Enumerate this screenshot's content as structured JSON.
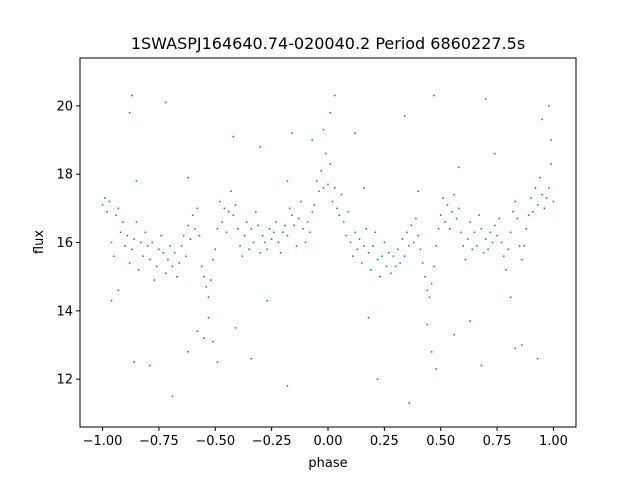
{
  "chart_data": {
    "type": "scatter",
    "title": "1SWASPJ164640.74-020040.2 Period 6860227.5s",
    "xlabel": "phase",
    "ylabel": "flux",
    "xlim": [
      -1.1,
      1.1
    ],
    "ylim": [
      10.6,
      21.4
    ],
    "xticks": [
      -1.0,
      -0.75,
      -0.5,
      -0.25,
      0.0,
      0.25,
      0.5,
      0.75,
      1.0
    ],
    "xtick_labels": [
      "−1.00",
      "−0.75",
      "−0.50",
      "−0.25",
      "0.00",
      "0.25",
      "0.50",
      "0.75",
      "1.00"
    ],
    "yticks": [
      12,
      14,
      16,
      18,
      20
    ],
    "ytick_labels": [
      "12",
      "14",
      "16",
      "18",
      "20"
    ],
    "grid": false,
    "point_color": "#1f77b4",
    "series": [
      {
        "points": [
          [
            -1.0,
            17.1
          ],
          [
            -0.99,
            17.3
          ],
          [
            -0.98,
            16.9
          ],
          [
            -0.97,
            17.2
          ],
          [
            -0.96,
            16.0
          ],
          [
            -0.95,
            15.6
          ],
          [
            -0.94,
            16.8
          ],
          [
            -0.93,
            17.0
          ],
          [
            -0.92,
            16.3
          ],
          [
            -0.91,
            16.6
          ],
          [
            -0.9,
            15.9
          ],
          [
            -0.89,
            16.2
          ],
          [
            -0.88,
            15.4
          ],
          [
            -0.87,
            15.8
          ],
          [
            -0.86,
            16.1
          ],
          [
            -0.85,
            16.6
          ],
          [
            -0.84,
            15.2
          ],
          [
            -0.83,
            16.0
          ],
          [
            -0.82,
            15.6
          ],
          [
            -0.81,
            16.3
          ],
          [
            -0.8,
            15.9
          ],
          [
            -0.79,
            15.5
          ],
          [
            -0.78,
            16.0
          ],
          [
            -0.77,
            14.9
          ],
          [
            -0.76,
            15.3
          ],
          [
            -0.75,
            15.8
          ],
          [
            -0.74,
            16.2
          ],
          [
            -0.73,
            15.7
          ],
          [
            -0.72,
            15.1
          ],
          [
            -0.71,
            15.5
          ],
          [
            -0.7,
            15.9
          ],
          [
            -0.69,
            15.3
          ],
          [
            -0.68,
            15.7
          ],
          [
            -0.67,
            15.0
          ],
          [
            -0.66,
            15.4
          ],
          [
            -0.65,
            15.9
          ],
          [
            -0.64,
            16.2
          ],
          [
            -0.63,
            15.6
          ],
          [
            -0.62,
            16.5
          ],
          [
            -0.61,
            16.1
          ],
          [
            -0.6,
            16.8
          ],
          [
            -0.59,
            16.4
          ],
          [
            -0.58,
            17.0
          ],
          [
            -0.57,
            16.2
          ],
          [
            -0.56,
            15.3
          ],
          [
            -0.55,
            15.0
          ],
          [
            -0.54,
            14.7
          ],
          [
            -0.53,
            14.4
          ],
          [
            -0.52,
            14.9
          ],
          [
            -0.51,
            15.5
          ],
          [
            -0.5,
            15.8
          ],
          [
            -0.49,
            16.4
          ],
          [
            -0.48,
            17.2
          ],
          [
            -0.47,
            16.6
          ],
          [
            -0.46,
            17.0
          ],
          [
            -0.45,
            16.3
          ],
          [
            -0.44,
            16.9
          ],
          [
            -0.43,
            17.5
          ],
          [
            -0.42,
            16.8
          ],
          [
            -0.41,
            17.1
          ],
          [
            -0.4,
            16.4
          ],
          [
            -0.39,
            15.9
          ],
          [
            -0.38,
            15.6
          ],
          [
            -0.37,
            16.2
          ],
          [
            -0.36,
            16.6
          ],
          [
            -0.35,
            15.8
          ],
          [
            -0.34,
            16.4
          ],
          [
            -0.33,
            16.0
          ],
          [
            -0.32,
            16.9
          ],
          [
            -0.31,
            16.5
          ],
          [
            -0.3,
            15.7
          ],
          [
            -0.29,
            16.2
          ],
          [
            -0.28,
            16.0
          ],
          [
            -0.27,
            15.8
          ],
          [
            -0.26,
            16.4
          ],
          [
            -0.25,
            16.1
          ],
          [
            -0.24,
            16.3
          ],
          [
            -0.23,
            16.6
          ],
          [
            -0.22,
            16.0
          ],
          [
            -0.21,
            15.7
          ],
          [
            -0.2,
            16.3
          ],
          [
            -0.19,
            16.5
          ],
          [
            -0.18,
            16.2
          ],
          [
            -0.17,
            17.0
          ],
          [
            -0.16,
            16.8
          ],
          [
            -0.15,
            16.5
          ],
          [
            -0.14,
            15.9
          ],
          [
            -0.13,
            16.7
          ],
          [
            -0.12,
            17.2
          ],
          [
            -0.11,
            16.4
          ],
          [
            -0.1,
            16.0
          ],
          [
            -0.09,
            16.6
          ],
          [
            -0.08,
            16.3
          ],
          [
            -0.07,
            16.9
          ],
          [
            -0.06,
            17.1
          ],
          [
            -0.05,
            17.8
          ],
          [
            -0.04,
            17.5
          ],
          [
            -0.03,
            18.1
          ],
          [
            -0.02,
            17.6
          ],
          [
            -0.01,
            18.6
          ],
          [
            0.0,
            17.7
          ],
          [
            0.01,
            18.3
          ],
          [
            0.02,
            17.2
          ],
          [
            0.03,
            17.6
          ],
          [
            0.04,
            17.0
          ],
          [
            0.05,
            16.8
          ],
          [
            0.06,
            17.4
          ],
          [
            0.07,
            16.6
          ],
          [
            0.08,
            16.2
          ],
          [
            0.09,
            16.9
          ],
          [
            0.1,
            16.0
          ],
          [
            0.11,
            15.6
          ],
          [
            0.12,
            16.3
          ],
          [
            0.13,
            15.8
          ],
          [
            0.14,
            16.1
          ],
          [
            0.15,
            15.4
          ],
          [
            0.16,
            15.9
          ],
          [
            0.17,
            16.4
          ],
          [
            0.18,
            15.7
          ],
          [
            0.19,
            15.2
          ],
          [
            0.2,
            15.9
          ],
          [
            0.21,
            16.3
          ],
          [
            0.22,
            15.5
          ],
          [
            0.23,
            15.0
          ],
          [
            0.24,
            15.6
          ],
          [
            0.25,
            16.0
          ],
          [
            0.26,
            15.3
          ],
          [
            0.27,
            15.7
          ],
          [
            0.28,
            15.1
          ],
          [
            0.29,
            15.6
          ],
          [
            0.3,
            15.3
          ],
          [
            0.31,
            15.8
          ],
          [
            0.32,
            15.4
          ],
          [
            0.33,
            16.1
          ],
          [
            0.34,
            15.6
          ],
          [
            0.35,
            16.3
          ],
          [
            0.36,
            15.9
          ],
          [
            0.37,
            16.5
          ],
          [
            0.38,
            16.0
          ],
          [
            0.39,
            16.7
          ],
          [
            0.4,
            16.2
          ],
          [
            0.41,
            15.8
          ],
          [
            0.42,
            15.4
          ],
          [
            0.43,
            15.0
          ],
          [
            0.44,
            14.6
          ],
          [
            0.45,
            14.4
          ],
          [
            0.46,
            14.8
          ],
          [
            0.47,
            15.3
          ],
          [
            0.48,
            15.9
          ],
          [
            0.49,
            16.4
          ],
          [
            0.5,
            16.8
          ],
          [
            0.51,
            17.3
          ],
          [
            0.52,
            16.6
          ],
          [
            0.53,
            17.1
          ],
          [
            0.54,
            16.4
          ],
          [
            0.55,
            16.9
          ],
          [
            0.56,
            17.4
          ],
          [
            0.57,
            16.7
          ],
          [
            0.58,
            17.0
          ],
          [
            0.59,
            16.3
          ],
          [
            0.6,
            15.9
          ],
          [
            0.61,
            15.5
          ],
          [
            0.62,
            16.1
          ],
          [
            0.63,
            16.6
          ],
          [
            0.64,
            15.8
          ],
          [
            0.65,
            16.3
          ],
          [
            0.66,
            15.9
          ],
          [
            0.67,
            16.8
          ],
          [
            0.68,
            16.4
          ],
          [
            0.69,
            15.7
          ],
          [
            0.7,
            16.1
          ],
          [
            0.71,
            15.8
          ],
          [
            0.72,
            16.3
          ],
          [
            0.73,
            16.0
          ],
          [
            0.74,
            16.5
          ],
          [
            0.75,
            16.2
          ],
          [
            0.76,
            16.7
          ],
          [
            0.77,
            16.0
          ],
          [
            0.78,
            15.6
          ],
          [
            0.79,
            15.2
          ],
          [
            0.8,
            15.8
          ],
          [
            0.81,
            16.3
          ],
          [
            0.82,
            16.9
          ],
          [
            0.83,
            17.2
          ],
          [
            0.84,
            16.7
          ],
          [
            0.85,
            15.9
          ],
          [
            0.86,
            15.5
          ],
          [
            0.87,
            15.9
          ],
          [
            0.88,
            16.4
          ],
          [
            0.89,
            16.8
          ],
          [
            0.9,
            17.3
          ],
          [
            0.91,
            16.9
          ],
          [
            0.92,
            17.6
          ],
          [
            0.93,
            17.1
          ],
          [
            0.94,
            17.9
          ],
          [
            0.95,
            17.4
          ],
          [
            0.96,
            17.0
          ],
          [
            0.97,
            17.3
          ],
          [
            0.98,
            17.6
          ],
          [
            0.99,
            18.3
          ],
          [
            1.0,
            17.2
          ],
          [
            -0.88,
            19.8
          ],
          [
            -0.87,
            20.3
          ],
          [
            -0.96,
            14.3
          ],
          [
            -0.93,
            14.6
          ],
          [
            -0.86,
            12.5
          ],
          [
            -0.79,
            12.4
          ],
          [
            -0.69,
            11.5
          ],
          [
            -0.62,
            12.8
          ],
          [
            -0.58,
            13.4
          ],
          [
            -0.55,
            13.2
          ],
          [
            -0.53,
            13.8
          ],
          [
            -0.51,
            13.1
          ],
          [
            -0.49,
            12.5
          ],
          [
            -0.41,
            13.5
          ],
          [
            -0.34,
            12.6
          ],
          [
            -0.27,
            14.3
          ],
          [
            -0.18,
            17.8
          ],
          [
            -0.16,
            19.2
          ],
          [
            -0.07,
            19.0
          ],
          [
            -0.02,
            19.3
          ],
          [
            0.01,
            19.8
          ],
          [
            0.03,
            20.3
          ],
          [
            0.12,
            19.2
          ],
          [
            0.18,
            13.8
          ],
          [
            0.22,
            12.0
          ],
          [
            0.36,
            11.3
          ],
          [
            0.44,
            13.6
          ],
          [
            0.46,
            12.8
          ],
          [
            0.48,
            12.3
          ],
          [
            0.56,
            13.3
          ],
          [
            0.63,
            13.7
          ],
          [
            0.68,
            12.4
          ],
          [
            0.81,
            14.4
          ],
          [
            0.86,
            13.0
          ],
          [
            0.93,
            12.6
          ],
          [
            0.95,
            19.6
          ],
          [
            0.98,
            20.0
          ],
          [
            0.99,
            19.0
          ],
          [
            -0.3,
            18.8
          ],
          [
            -0.18,
            11.8
          ],
          [
            0.58,
            18.2
          ],
          [
            0.74,
            18.6
          ],
          [
            0.47,
            20.3
          ],
          [
            -0.72,
            20.1
          ],
          [
            0.34,
            19.7
          ],
          [
            0.7,
            20.2
          ],
          [
            -0.42,
            19.1
          ],
          [
            0.83,
            12.9
          ],
          [
            -0.85,
            17.8
          ],
          [
            0.16,
            17.6
          ],
          [
            -0.62,
            17.9
          ],
          [
            0.4,
            17.5
          ]
        ]
      }
    ]
  }
}
